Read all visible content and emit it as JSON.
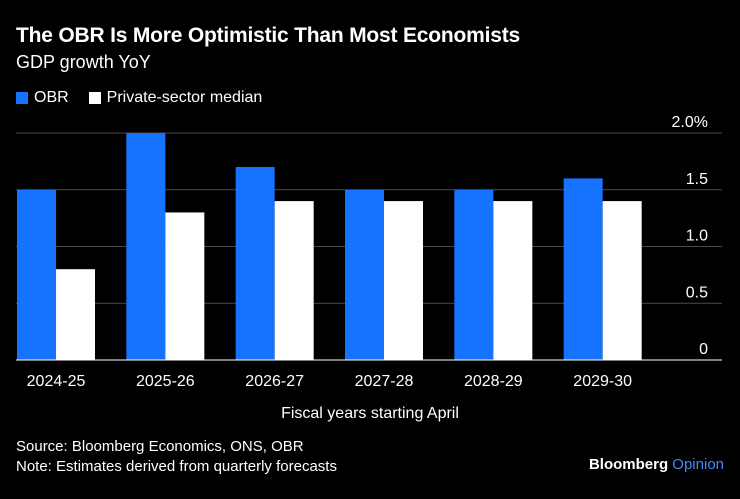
{
  "header": {
    "title": "The OBR Is More Optimistic Than Most Economists",
    "subtitle": "GDP growth YoY"
  },
  "colors": {
    "obr": "#1673ff",
    "private": "#ffffff",
    "grid": "#4a4a4a"
  },
  "chart_data": {
    "type": "bar",
    "title": "The OBR Is More Optimistic Than Most Economists",
    "subtitle": "GDP growth YoY",
    "xlabel": "Fiscal years starting April",
    "ylabel": "",
    "ylim": [
      0,
      2.0
    ],
    "y_ticks": [
      {
        "value": 0,
        "label": "0"
      },
      {
        "value": 0.5,
        "label": "0.5"
      },
      {
        "value": 1.0,
        "label": "1.0"
      },
      {
        "value": 1.5,
        "label": "1.5"
      },
      {
        "value": 2.0,
        "label": "2.0%"
      }
    ],
    "categories": [
      "2024-25",
      "2025-26",
      "2026-27",
      "2027-28",
      "2028-29",
      "2029-30"
    ],
    "series": [
      {
        "name": "OBR",
        "values": [
          1.5,
          2.0,
          1.7,
          1.5,
          1.5,
          1.6
        ]
      },
      {
        "name": "Private-sector median",
        "values": [
          0.8,
          1.3,
          1.4,
          1.4,
          1.4,
          1.4
        ]
      }
    ],
    "legend": "top-left"
  },
  "footer": {
    "source": "Source: Bloomberg Economics, ONS, OBR",
    "note": "Note: Estimates derived from quarterly forecasts"
  },
  "brand": {
    "name": "Bloomberg",
    "suffix": "Opinion"
  }
}
